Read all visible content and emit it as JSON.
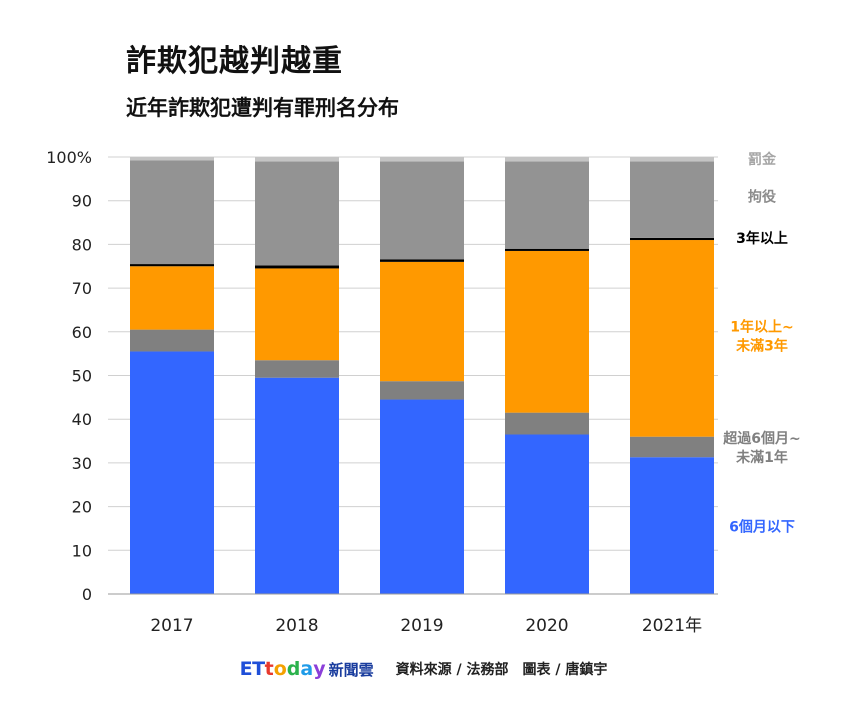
{
  "header": {
    "title": "詐欺犯越判越重",
    "subtitle": "近年詐欺犯遭判有罪刑名分布"
  },
  "footer": {
    "logo_et": "ET",
    "logo_t": "t",
    "logo_o": "o",
    "logo_d": "d",
    "logo_a": "a",
    "logo_y": "y",
    "logo_news": "新聞雲",
    "source": "資料來源 / 法務部　圖表 / 唐鎮宇"
  },
  "colors": {
    "under_6m": "#3366ff",
    "6m_to_1y": "#808080",
    "1y_to_3y": "#ff9900",
    "over_3y": "#000000",
    "detention": "#939393",
    "fine": "#c4c4c4",
    "grid": "#d0d0d0"
  },
  "chart_data": {
    "type": "bar",
    "stacked": true,
    "categories": [
      "2017",
      "2018",
      "2019",
      "2020",
      "2021年"
    ],
    "series": [
      {
        "name": "6個月以下",
        "values": [
          55.5,
          49.5,
          44.5,
          36.5,
          31.3
        ],
        "color": "#3366ff"
      },
      {
        "name": "超過6個月~未滿1年",
        "values": [
          5.0,
          4.0,
          4.2,
          5.0,
          4.7
        ],
        "color": "#808080"
      },
      {
        "name": "1年以上~未滿3年",
        "values": [
          14.5,
          21.0,
          27.3,
          37.0,
          45.0
        ],
        "color": "#ff9900"
      },
      {
        "name": "3年以上",
        "values": [
          0.5,
          0.7,
          0.6,
          0.5,
          0.5
        ],
        "color": "#000000"
      },
      {
        "name": "拘役",
        "values": [
          23.7,
          23.8,
          22.4,
          20.0,
          17.5
        ],
        "color": "#939393"
      },
      {
        "name": "罰金",
        "values": [
          0.8,
          1.0,
          1.0,
          1.0,
          1.0
        ],
        "color": "#c4c4c4"
      }
    ],
    "legend": [
      {
        "text": "罰金",
        "color": "#a6a6a6",
        "at": 99.5
      },
      {
        "text": "拘役",
        "color": "#8c8c8c",
        "at": 91
      },
      {
        "text": "3年以上",
        "color": "#000000",
        "at": 81.5
      },
      {
        "text": "1年以上~\n未滿3年",
        "color": "#ff9900",
        "at": 59
      },
      {
        "text": "超過6個月~\n未滿1年",
        "color": "#808080",
        "at": 33.5
      },
      {
        "text": "6個月以下",
        "color": "#3366ff",
        "at": 15.5
      }
    ],
    "y_ticks": [
      {
        "value": 0,
        "label": "0"
      },
      {
        "value": 10,
        "label": "10"
      },
      {
        "value": 20,
        "label": "20"
      },
      {
        "value": 30,
        "label": "30"
      },
      {
        "value": 40,
        "label": "40"
      },
      {
        "value": 50,
        "label": "50"
      },
      {
        "value": 60,
        "label": "60"
      },
      {
        "value": 70,
        "label": "70"
      },
      {
        "value": 80,
        "label": "80"
      },
      {
        "value": 90,
        "label": "90"
      },
      {
        "value": 100,
        "label": "100%"
      }
    ],
    "ylim": [
      0,
      100
    ],
    "grid": true,
    "legend_position": "right"
  }
}
